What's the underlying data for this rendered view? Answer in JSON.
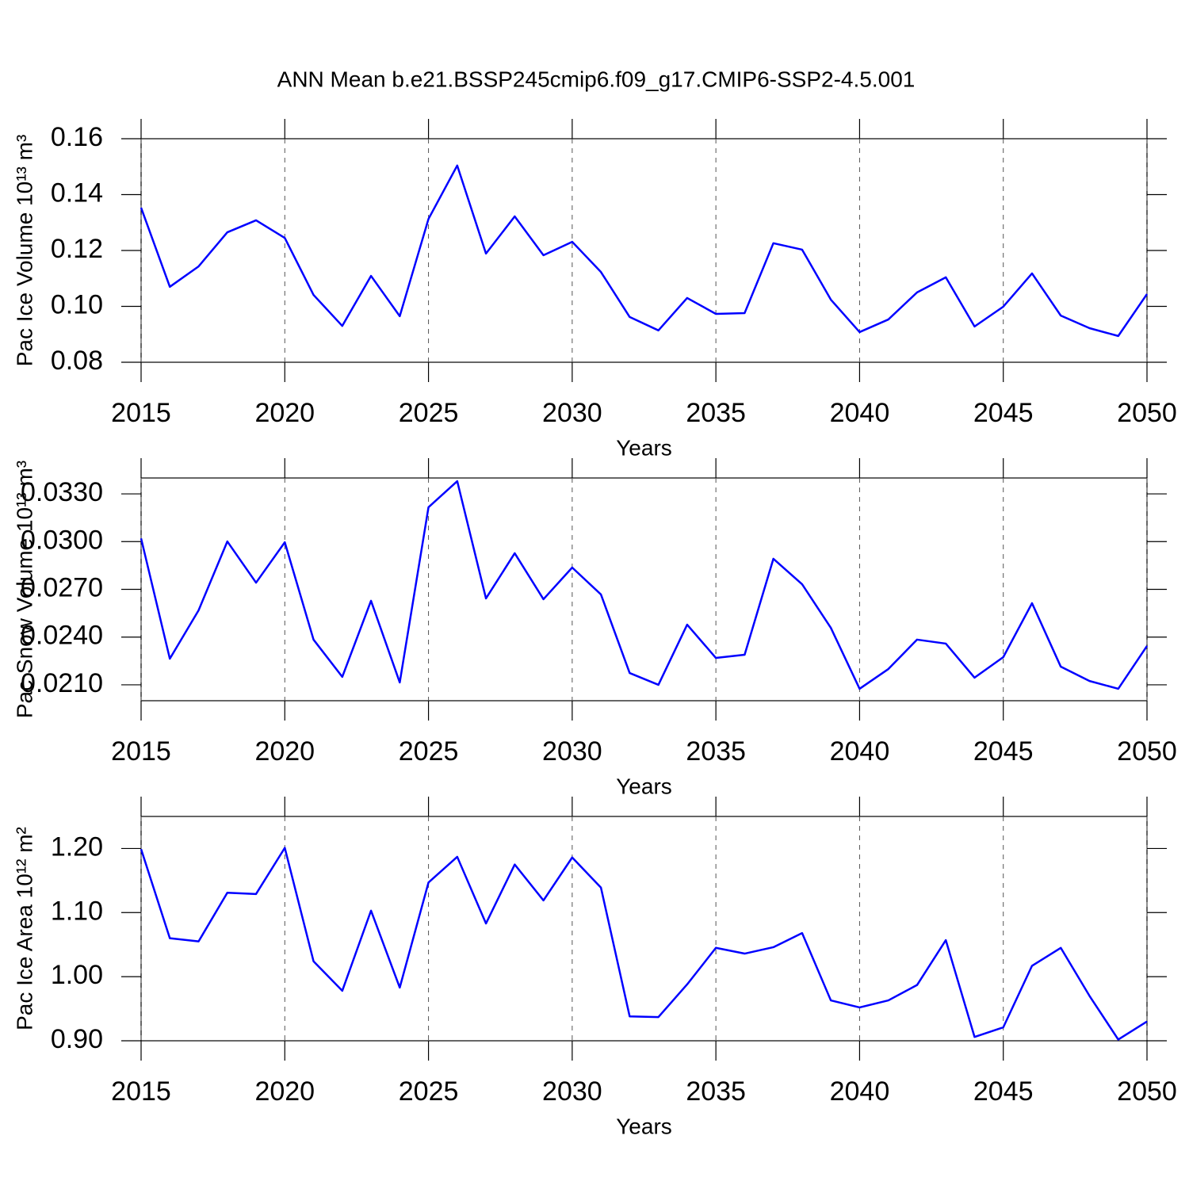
{
  "title": "ANN Mean b.e21.BSSP245cmip6.f09_g17.CMIP6-SSP2-4.5.001",
  "chart_data": [
    {
      "type": "line",
      "ylabel": "Pac Ice Volume 10¹³ m³",
      "xlabel": "Years",
      "color": "#0000ff",
      "xgrid": true,
      "x": [
        2015,
        2016,
        2017,
        2018,
        2019,
        2020,
        2021,
        2022,
        2023,
        2024,
        2025,
        2026,
        2027,
        2028,
        2029,
        2030,
        2031,
        2032,
        2033,
        2034,
        2035,
        2036,
        2037,
        2038,
        2039,
        2040,
        2041,
        2042,
        2043,
        2044,
        2045,
        2046,
        2047,
        2048,
        2049,
        2050
      ],
      "values": [
        0.1353,
        0.107,
        0.1143,
        0.1265,
        0.1308,
        0.1245,
        0.1041,
        0.093,
        0.1109,
        0.0965,
        0.1313,
        0.1504,
        0.1189,
        0.1322,
        0.1183,
        0.1231,
        0.1123,
        0.0962,
        0.0914,
        0.103,
        0.0973,
        0.0976,
        0.1226,
        0.1203,
        0.1024,
        0.0908,
        0.0953,
        0.105,
        0.1104,
        0.0928,
        0.0999,
        0.1118,
        0.0967,
        0.0922,
        0.0894,
        0.1044
      ],
      "xlim": [
        2015,
        2050
      ],
      "xticks": [
        2015,
        2020,
        2025,
        2030,
        2035,
        2040,
        2045,
        2050
      ],
      "ylim": [
        0.08,
        0.16
      ],
      "yticks": [
        0.08,
        {
          "value": 0.1,
          "label": "0.10"
        },
        0.12,
        0.14,
        0.16
      ]
    },
    {
      "type": "line",
      "ylabel": "Pac Snow Volume 10¹³ m³",
      "xlabel": "Years",
      "color": "#0000ff",
      "xgrid": true,
      "x": [
        2015,
        2016,
        2017,
        2018,
        2019,
        2020,
        2021,
        2022,
        2023,
        2024,
        2025,
        2026,
        2027,
        2028,
        2029,
        2030,
        2031,
        2032,
        2033,
        2034,
        2035,
        2036,
        2037,
        2038,
        2039,
        2040,
        2041,
        2042,
        2043,
        2044,
        2045,
        2046,
        2047,
        2048,
        2049,
        2050
      ],
      "values": [
        0.0302,
        0.02264,
        0.02568,
        0.03001,
        0.02742,
        0.02996,
        0.02384,
        0.0215,
        0.02628,
        0.02115,
        0.03216,
        0.0338,
        0.02643,
        0.02927,
        0.02638,
        0.02837,
        0.02668,
        0.02174,
        0.021,
        0.02478,
        0.02269,
        0.02289,
        0.02892,
        0.02732,
        0.02458,
        0.02075,
        0.02199,
        0.02384,
        0.02359,
        0.02145,
        0.02274,
        0.02613,
        0.02214,
        0.02124,
        0.02075,
        0.02344
      ],
      "xlim": [
        2015,
        2050
      ],
      "xticks": [
        2015,
        2020,
        2025,
        2030,
        2035,
        2040,
        2045,
        2050
      ],
      "ylim": [
        0.02,
        0.034
      ],
      "yticks": [
        {
          "value": 0.021,
          "label": "0.0210"
        },
        {
          "value": 0.024,
          "label": "0.0240"
        },
        {
          "value": 0.027,
          "label": "0.0270"
        },
        {
          "value": 0.03,
          "label": "0.0300"
        },
        {
          "value": 0.033,
          "label": "0.0330"
        }
      ]
    },
    {
      "type": "line",
      "ylabel": "Pac Ice Area 10¹² m²",
      "xlabel": "Years",
      "color": "#0000ff",
      "xgrid": true,
      "x": [
        2015,
        2016,
        2017,
        2018,
        2019,
        2020,
        2021,
        2022,
        2023,
        2024,
        2025,
        2026,
        2027,
        2028,
        2029,
        2030,
        2031,
        2032,
        2033,
        2034,
        2035,
        2036,
        2037,
        2038,
        2039,
        2040,
        2041,
        2042,
        2043,
        2044,
        2045,
        2046,
        2047,
        2048,
        2049,
        2050
      ],
      "values": [
        1.199,
        1.06,
        1.055,
        1.131,
        1.129,
        1.201,
        1.024,
        0.978,
        1.103,
        0.983,
        1.147,
        1.187,
        1.083,
        1.175,
        1.119,
        1.186,
        1.139,
        0.938,
        0.937,
        0.988,
        1.045,
        1.036,
        1.046,
        1.068,
        0.963,
        0.952,
        0.963,
        0.987,
        1.057,
        0.906,
        0.921,
        1.017,
        1.045,
        0.97,
        0.902,
        0.93
      ],
      "xlim": [
        2015,
        2050
      ],
      "xticks": [
        2015,
        2020,
        2025,
        2030,
        2035,
        2040,
        2045,
        2050
      ],
      "ylim": [
        0.9,
        1.25
      ],
      "yticks": [
        {
          "value": 0.9,
          "label": "0.90"
        },
        {
          "value": 1.0,
          "label": "1.00"
        },
        {
          "value": 1.1,
          "label": "1.10"
        },
        {
          "value": 1.2,
          "label": "1.20"
        }
      ]
    }
  ]
}
